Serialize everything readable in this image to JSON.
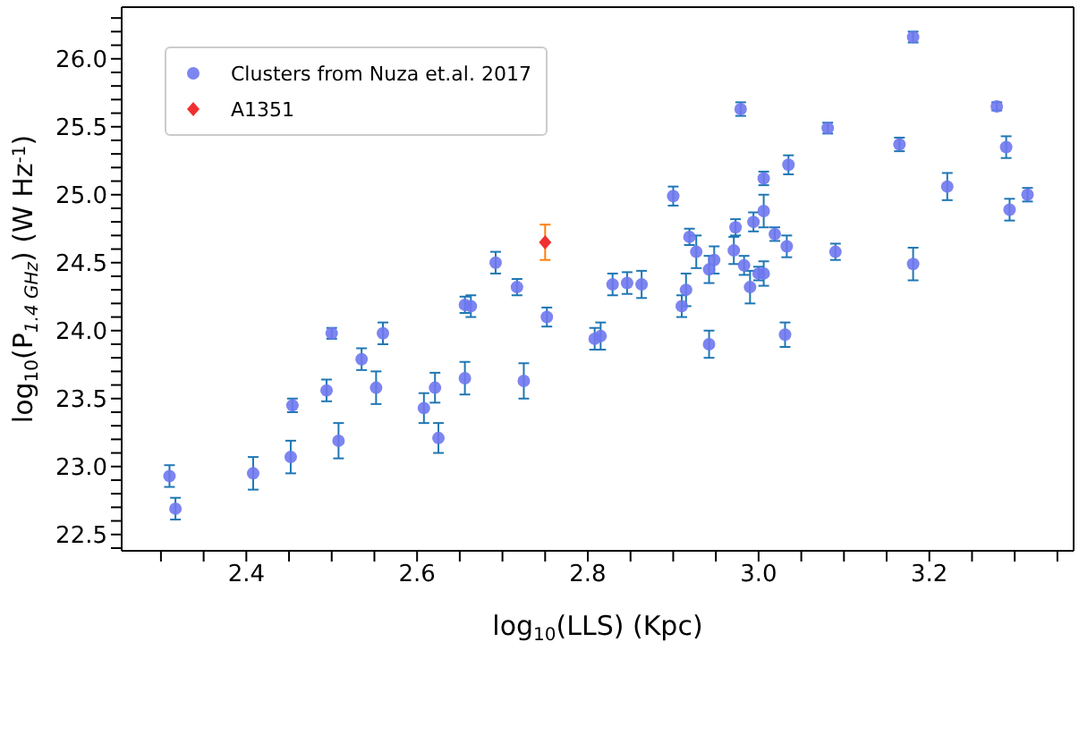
{
  "chart_data": {
    "type": "scatter",
    "xlabel": "log$_{10}$(LLS) (Kpc)",
    "ylabel": "log$_{10}$(P$_{1.4 GHz}$) (W Hz$^{-1}$)",
    "xlim": [
      2.254,
      3.369
    ],
    "ylim": [
      22.38,
      26.38
    ],
    "xticks": [
      {
        "value": 2.3,
        "label": null
      },
      {
        "value": 2.35,
        "label": null
      },
      2.4,
      {
        "value": 2.45,
        "label": null
      },
      {
        "value": 2.5,
        "label": null
      },
      {
        "value": 2.55,
        "label": null
      },
      2.6,
      {
        "value": 2.65,
        "label": null
      },
      {
        "value": 2.7,
        "label": null
      },
      {
        "value": 2.75,
        "label": null
      },
      2.8,
      {
        "value": 2.85,
        "label": null
      },
      {
        "value": 2.9,
        "label": null
      },
      {
        "value": 2.95,
        "label": null
      },
      {
        "value": 3.0,
        "label": "3.0"
      },
      {
        "value": 3.05,
        "label": null
      },
      {
        "value": 3.1,
        "label": null
      },
      {
        "value": 3.15,
        "label": null
      },
      3.2,
      {
        "value": 3.25,
        "label": null
      },
      {
        "value": 3.3,
        "label": null
      },
      {
        "value": 3.35,
        "label": null
      }
    ],
    "yticks": [
      {
        "value": 22.4,
        "label": null
      },
      22.5,
      {
        "value": 22.6,
        "label": null
      },
      {
        "value": 22.7,
        "label": null
      },
      {
        "value": 22.8,
        "label": null
      },
      {
        "value": 22.9,
        "label": null
      },
      {
        "value": 23.0,
        "label": "23.0"
      },
      {
        "value": 23.1,
        "label": null
      },
      {
        "value": 23.2,
        "label": null
      },
      {
        "value": 23.3,
        "label": null
      },
      {
        "value": 23.4,
        "label": null
      },
      23.5,
      {
        "value": 23.6,
        "label": null
      },
      {
        "value": 23.7,
        "label": null
      },
      {
        "value": 23.8,
        "label": null
      },
      {
        "value": 23.9,
        "label": null
      },
      {
        "value": 24.0,
        "label": "24.0"
      },
      {
        "value": 24.1,
        "label": null
      },
      {
        "value": 24.2,
        "label": null
      },
      {
        "value": 24.3,
        "label": null
      },
      {
        "value": 24.4,
        "label": null
      },
      24.5,
      {
        "value": 24.6,
        "label": null
      },
      {
        "value": 24.7,
        "label": null
      },
      {
        "value": 24.8,
        "label": null
      },
      {
        "value": 24.9,
        "label": null
      },
      {
        "value": 25.0,
        "label": "25.0"
      },
      {
        "value": 25.1,
        "label": null
      },
      {
        "value": 25.2,
        "label": null
      },
      {
        "value": 25.3,
        "label": null
      },
      {
        "value": 25.4,
        "label": null
      },
      25.5,
      {
        "value": 25.6,
        "label": null
      },
      {
        "value": 25.7,
        "label": null
      },
      {
        "value": 25.8,
        "label": null
      },
      {
        "value": 25.9,
        "label": null
      },
      {
        "value": 26.0,
        "label": "26.0"
      },
      {
        "value": 26.1,
        "label": null
      },
      {
        "value": 26.2,
        "label": null
      },
      {
        "value": 26.3,
        "label": null
      }
    ],
    "legend": "top left",
    "series": [
      {
        "name": "Clusters from Nuza et.al. 2017",
        "color": "#6f78ee",
        "marker": "circle",
        "x": [
          2.31,
          2.317,
          2.408,
          2.452,
          2.454,
          2.494,
          2.5,
          2.508,
          2.535,
          2.552,
          2.56,
          2.608,
          2.621,
          2.625,
          2.656,
          2.656,
          2.663,
          2.692,
          2.717,
          2.725,
          2.752,
          2.808,
          2.815,
          2.829,
          2.846,
          2.863,
          2.91,
          2.915,
          2.919,
          2.9,
          2.927,
          2.942,
          2.942,
          2.948,
          2.971,
          2.973,
          2.983,
          2.99,
          2.994,
          3.0,
          3.006,
          3.006,
          3.006,
          3.019,
          3.033,
          3.031,
          3.035,
          3.09,
          3.081,
          2.979,
          3.181,
          3.165,
          3.181,
          3.221,
          3.279,
          3.29,
          3.294,
          3.315
        ],
        "values": [
          22.93,
          22.69,
          22.95,
          23.07,
          23.45,
          23.56,
          23.98,
          23.19,
          23.79,
          23.58,
          23.98,
          23.43,
          23.58,
          23.21,
          23.65,
          24.19,
          24.18,
          24.5,
          24.32,
          23.63,
          24.1,
          23.94,
          23.96,
          24.34,
          24.35,
          24.34,
          24.18,
          24.3,
          24.69,
          24.99,
          24.58,
          24.45,
          23.9,
          24.52,
          24.59,
          24.76,
          24.48,
          24.32,
          24.8,
          24.42,
          24.42,
          24.88,
          25.12,
          24.71,
          24.62,
          23.97,
          25.22,
          24.58,
          25.49,
          25.63,
          24.49,
          25.37,
          26.16,
          25.06,
          25.65,
          25.35,
          24.89,
          25.0
        ],
        "errors": [
          0.08,
          0.08,
          0.12,
          0.12,
          0.05,
          0.08,
          0.04,
          0.13,
          0.08,
          0.12,
          0.08,
          0.11,
          0.11,
          0.11,
          0.12,
          0.06,
          0.08,
          0.08,
          0.06,
          0.13,
          0.07,
          0.08,
          0.1,
          0.08,
          0.08,
          0.1,
          0.08,
          0.12,
          0.06,
          0.07,
          0.12,
          0.1,
          0.1,
          0.1,
          0.1,
          0.06,
          0.07,
          0.12,
          0.07,
          0.05,
          0.09,
          0.12,
          0.05,
          0.05,
          0.08,
          0.09,
          0.07,
          0.06,
          0.04,
          0.05,
          0.12,
          0.05,
          0.04,
          0.1,
          0.03,
          0.08,
          0.08,
          0.05
        ]
      },
      {
        "name": "A1351",
        "color": "#f03030",
        "marker": "diamond",
        "x": [
          2.75
        ],
        "values": [
          24.65
        ],
        "errors": [
          0.13
        ]
      }
    ]
  }
}
